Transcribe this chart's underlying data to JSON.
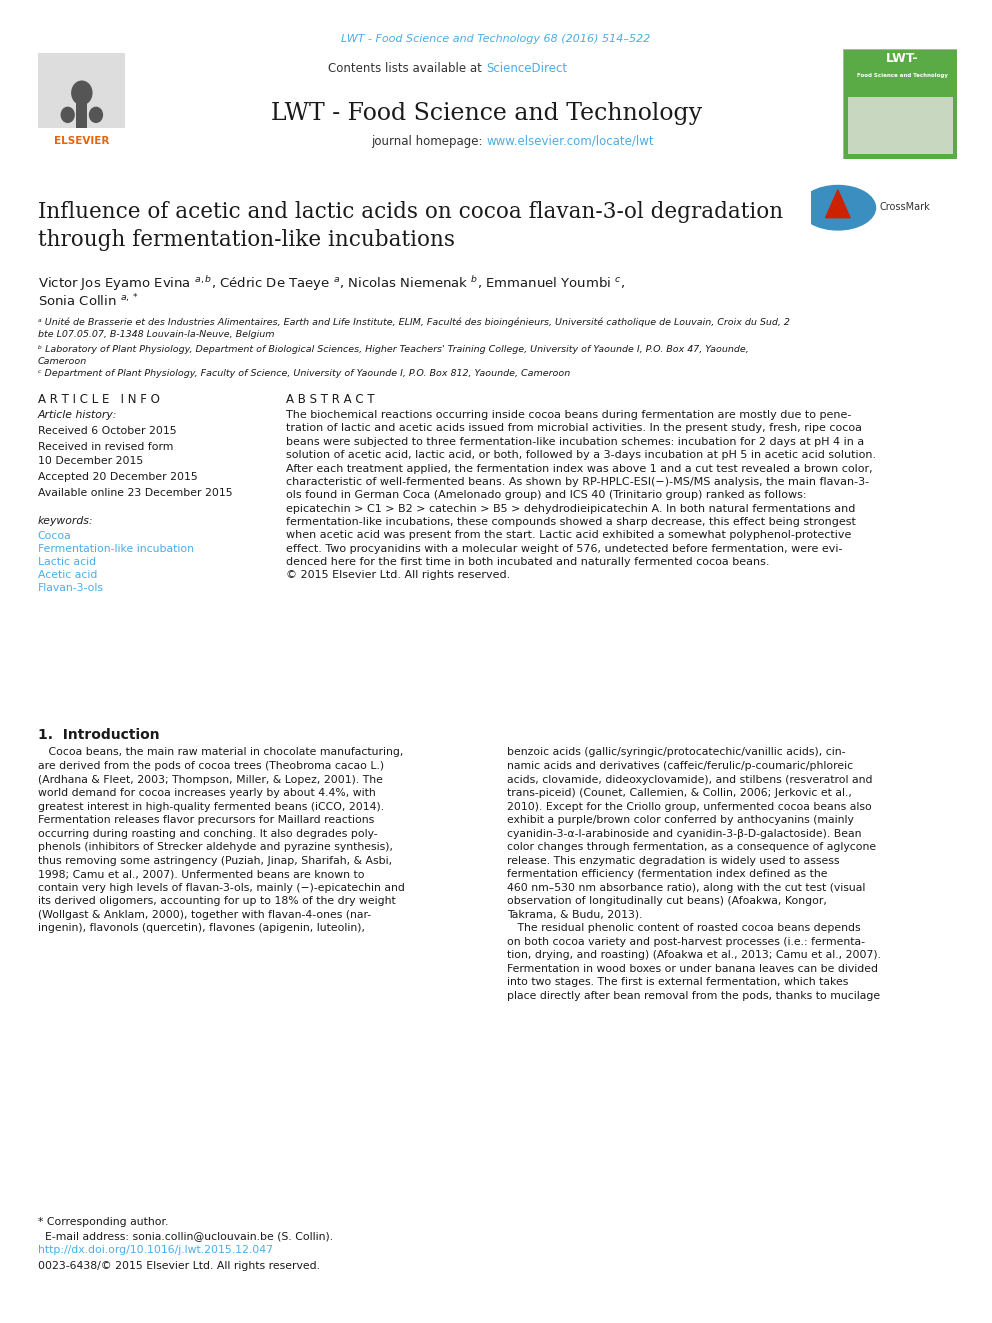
{
  "fig_width": 9.92,
  "fig_height": 13.23,
  "dpi": 100,
  "background_color": "#ffffff",
  "journal_ref_color": "#4AADE8",
  "journal_ref": "LWT - Food Science and Technology 68 (2016) 514–522",
  "header_bg": "#E8E8E8",
  "sciencedirect_color": "#4AADE8",
  "journal_title": "LWT - Food Science and Technology",
  "journal_url": "www.elsevier.com/locate/lwt",
  "journal_url_color": "#4AADE8",
  "elsevier_color": "#E8640A",
  "top_bar_color": "#1A1A1A",
  "article_title": "Influence of acetic and lactic acids on cocoa flavan-3-ol degradation\nthrough fermentation-like incubations",
  "affil_a": "ᵃ Unité de Brasserie et des Industries Alimentaires, Earth and Life Institute, ELIM, Faculté des bioingénieurs, Université catholique de Louvain, Croix du Sud, 2\nbte L07.05.07, B-1348 Louvain-la-Neuve, Belgium",
  "affil_b": "ᵇ Laboratory of Plant Physiology, Department of Biological Sciences, Higher Teachers' Training College, University of Yaounde I, P.O. Box 47, Yaounde,\nCameroon",
  "affil_c": "ᶜ Department of Plant Physiology, Faculty of Science, University of Yaounde I, P.O. Box 812, Yaounde, Cameroon",
  "article_info_title": "A R T I C L E   I N F O",
  "abstract_title": "A B S T R A C T",
  "abstract_text": "The biochemical reactions occurring inside cocoa beans during fermentation are mostly due to pene-\ntration of lactic and acetic acids issued from microbial activities. In the present study, fresh, ripe cocoa\nbeans were subjected to three fermentation-like incubation schemes: incubation for 2 days at pH 4 in a\nsolution of acetic acid, lactic acid, or both, followed by a 3-days incubation at pH 5 in acetic acid solution.\nAfter each treatment applied, the fermentation index was above 1 and a cut test revealed a brown color,\ncharacteristic of well-fermented beans. As shown by RP-HPLC-ESI(−)-MS/MS analysis, the main flavan-3-\nols found in German Coca (Amelonado group) and ICS 40 (Trinitario group) ranked as follows:\nepicatechin > C1 > B2 > catechin > B5 > dehydrodieipicatechin A. In both natural fermentations and\nfermentation-like incubations, these compounds showed a sharp decrease, this effect being strongest\nwhen acetic acid was present from the start. Lactic acid exhibited a somewhat polyphenol-protective\neffect. Two procyanidins with a molecular weight of 576, undetected before fermentation, were evi-\ndenced here for the first time in both incubated and naturally fermented cocoa beans.\n© 2015 Elsevier Ltd. All rights reserved.",
  "intro_title": "1.  Introduction",
  "intro_col1": "   Cocoa beans, the main raw material in chocolate manufacturing,\nare derived from the pods of cocoa trees (Theobroma cacao L.)\n(Ardhana & Fleet, 2003; Thompson, Miller, & Lopez, 2001). The\nworld demand for cocoa increases yearly by about 4.4%, with\ngreatest interest in high-quality fermented beans (iCCO, 2014).\nFermentation releases flavor precursors for Maillard reactions\noccurring during roasting and conching. It also degrades poly-\nphenols (inhibitors of Strecker aldehyde and pyrazine synthesis),\nthus removing some astringency (Puziah, Jinap, Sharifah, & Asbi,\n1998; Camu et al., 2007). Unfermented beans are known to\ncontain very high levels of flavan-3-ols, mainly (−)-epicatechin and\nits derived oligomers, accounting for up to 18% of the dry weight\n(Wollgast & Anklam, 2000), together with flavan-4-ones (nar-\ningenin), flavonols (quercetin), flavones (apigenin, luteolin),",
  "intro_col2": "benzoic acids (gallic/syringic/protocatechic/vanillic acids), cin-\nnamic acids and derivatives (caffeic/ferulic/p-coumaric/phloreic\nacids, clovamide, dideoxyclovamide), and stilbens (resveratrol and\ntrans-piceid) (Counet, Callemien, & Collin, 2006; Jerkovic et al.,\n2010). Except for the Criollo group, unfermented cocoa beans also\nexhibit a purple/brown color conferred by anthocyanins (mainly\ncyanidin-3-α-l-arabinoside and cyanidin-3-β-D-galactoside). Bean\ncolor changes through fermentation, as a consequence of aglycone\nrelease. This enzymatic degradation is widely used to assess\nfermentation efficiency (fermentation index defined as the\n460 nm–530 nm absorbance ratio), along with the cut test (visual\nobservation of longitudinally cut beans) (Afoakwa, Kongor,\nTakrama, & Budu, 2013).\n   The residual phenolic content of roasted cocoa beans depends\non both cocoa variety and post-harvest processes (i.e.: fermenta-\ntion, drying, and roasting) (Afoakwa et al., 2013; Camu et al., 2007).\nFermentation in wood boxes or under banana leaves can be divided\ninto two stages. The first is external fermentation, which takes\nplace directly after bean removal from the pods, thanks to mucilage",
  "footer_note": "* Corresponding author.\n  E-mail address: sonia.collin@uclouvain.be (S. Collin).",
  "doi_text": "http://dx.doi.org/10.1016/j.lwt.2015.12.047",
  "copyright": "0023-6438/© 2015 Elsevier Ltd. All rights reserved.",
  "link_color": "#4AADE8"
}
